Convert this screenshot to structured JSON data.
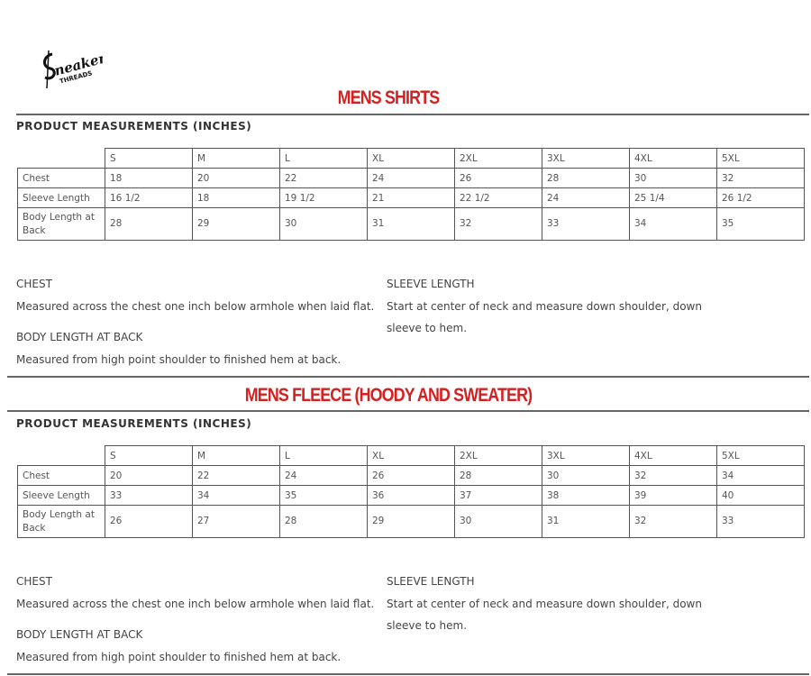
{
  "brand": {
    "logo_text": "Sneaker THREADS"
  },
  "sections": [
    {
      "title": "MENS SHIRTS",
      "subtitle": "PRODUCT MEASUREMENTS (INCHES)",
      "sizes": [
        "S",
        "M",
        "L",
        "XL",
        "2XL",
        "3XL",
        "4XL",
        "5XL"
      ],
      "rows": [
        {
          "label": "Chest",
          "values": [
            "18",
            "20",
            "22",
            "24",
            "26",
            "28",
            "30",
            "32"
          ]
        },
        {
          "label": "Sleeve Length",
          "values": [
            "16 1/2",
            "18",
            "19 1/2",
            "21",
            "22 1/2",
            "24",
            "25 1/4",
            "26 1/2"
          ]
        },
        {
          "label": "Body Length at Back",
          "values": [
            "28",
            "29",
            "30",
            "31",
            "32",
            "33",
            "34",
            "35"
          ]
        }
      ],
      "notes": {
        "chest_title": "CHEST",
        "chest_desc": "Measured across the chest one inch below armhole when laid flat.",
        "body_title": "BODY LENGTH AT BACK",
        "body_desc": "Measured from high point shoulder to finished hem at back.",
        "sleeve_title": "SLEEVE LENGTH",
        "sleeve_desc": "Start at center of neck and measure down shoulder, down sleeve to hem."
      }
    },
    {
      "title": "MENS FLEECE (HOODY AND SWEATER)",
      "subtitle": "PRODUCT MEASUREMENTS (INCHES)",
      "sizes": [
        "S",
        "M",
        "L",
        "XL",
        "2XL",
        "3XL",
        "4XL",
        "5XL"
      ],
      "rows": [
        {
          "label": "Chest",
          "values": [
            "20",
            "22",
            "24",
            "26",
            "28",
            "30",
            "32",
            "34"
          ]
        },
        {
          "label": "Sleeve Length",
          "values": [
            "33",
            "34",
            "35",
            "36",
            "37",
            "38",
            "39",
            "40"
          ]
        },
        {
          "label": "Body Length at Back",
          "values": [
            "26",
            "27",
            "28",
            "29",
            "30",
            "31",
            "32",
            "33"
          ]
        }
      ],
      "notes": {
        "chest_title": "CHEST",
        "chest_desc": "Measured across the chest one inch below armhole when laid flat.",
        "body_title": "BODY LENGTH AT BACK",
        "body_desc": "Measured from high point shoulder to finished hem at back.",
        "sleeve_title": "SLEEVE LENGTH",
        "sleeve_desc": "Start at center of neck and measure down shoulder, down sleeve to hem."
      }
    }
  ],
  "colors": {
    "title": "#d42020",
    "rule": "#666666"
  }
}
